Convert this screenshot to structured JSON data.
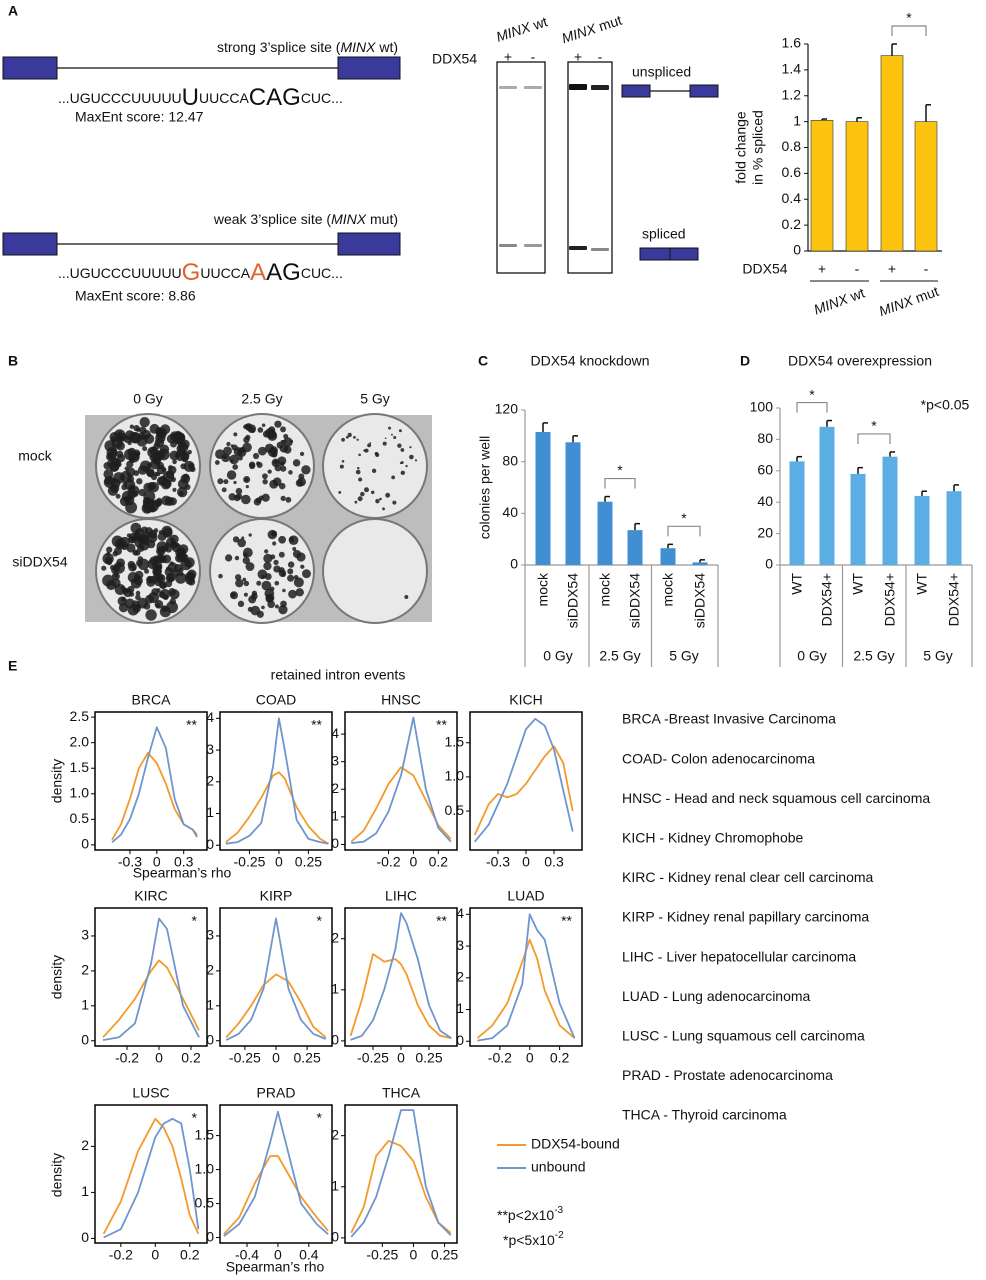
{
  "panel_labels": [
    "A",
    "B",
    "C",
    "D",
    "E"
  ],
  "panel_a": {
    "strong": {
      "title": [
        {
          "text": "strong 3’splice site ("
        },
        {
          "text": "MINX",
          "italic": true
        },
        {
          "text": " wt)"
        }
      ],
      "sequence": [
        {
          "text": "...UGUCCCUUUUU"
        },
        {
          "text": "U",
          "big": true
        },
        {
          "text": "UUCCA"
        },
        {
          "text": "CAG",
          "big": true
        },
        {
          "text": "CUC..."
        }
      ],
      "score": "MaxEnt score: 12.47"
    },
    "weak": {
      "title": [
        {
          "text": "weak 3’splice site ("
        },
        {
          "text": "MINX",
          "italic": true
        },
        {
          "text": " mut)"
        }
      ],
      "sequence": [
        {
          "text": "...UGUCCCUUUUU"
        },
        {
          "text": "G",
          "big": true,
          "color": "#e3622b"
        },
        {
          "text": "UUCCA"
        },
        {
          "text": "A",
          "big": true,
          "color": "#e3622b"
        },
        {
          "text": "AG",
          "big": true
        },
        {
          "text": "CUC..."
        }
      ],
      "score": "MaxEnt score: 8.86"
    },
    "gel": {
      "lanes": [
        [
          {
            "text": "MINX",
            "italic": true
          },
          {
            "text": " wt"
          }
        ],
        [
          {
            "text": "MINX",
            "italic": true
          },
          {
            "text": " mut"
          }
        ]
      ],
      "row_label": "DDX54",
      "signs": [
        "+",
        "-",
        "+",
        "-"
      ],
      "unspliced": "unspliced",
      "spliced": "spliced"
    }
  },
  "panel_b": {
    "columns": [
      "0 Gy",
      "2.5 Gy",
      "5 Gy"
    ],
    "rows": [
      "mock",
      "siDDX54"
    ]
  },
  "panel_e": {
    "heading": "retained intron events",
    "xlabel": "Spearman’s rho",
    "ylabel": "density",
    "legend": [
      {
        "name": "DDX54-bound",
        "color": "#f39a2b"
      },
      {
        "name": "unbound",
        "color": "#6f95cf"
      }
    ],
    "footnotes": [
      [
        {
          "text": "**p<2x10"
        },
        {
          "text": "-3",
          "sup": true
        }
      ],
      [
        {
          "text": "*p<5x10"
        },
        {
          "text": "-2",
          "sup": true
        }
      ]
    ],
    "abbreviations": [
      "BRCA -Breast Invasive Carcinoma",
      "COAD- Colon adenocarcinoma",
      "HNSC - Head and neck squamous cell carcinoma",
      "KICH - Kidney Chromophobe",
      "KIRC - Kidney renal clear cell carcinoma",
      "KIRP - Kidney renal papillary carcinoma",
      "LIHC - Liver hepatocellular carcinoma",
      "LUAD - Lung adenocarcinoma",
      "LUSC - Lung squamous cell carcinoma",
      "PRAD - Prostate adenocarcinoma",
      "THCA - Thyroid carcinoma"
    ]
  },
  "chart_data": [
    {
      "type": "bar",
      "ylabel": [
        "fold change",
        "in % spliced"
      ],
      "row_label": "DDX54",
      "categories": [
        "+",
        "-",
        "+",
        "-"
      ],
      "values": [
        1.01,
        1.0,
        1.51,
        1.0
      ],
      "errors": [
        0.01,
        0.03,
        0.09,
        0.13
      ],
      "groups": [
        [
          {
            "text": "MINX",
            "italic": true
          },
          {
            "text": " wt"
          }
        ],
        [
          {
            "text": "MINX",
            "italic": true
          },
          {
            "text": " mut"
          }
        ]
      ],
      "color": "#fcc30f",
      "ylim": [
        0,
        1.6
      ],
      "yticks": [
        0,
        0.2,
        0.4,
        0.6,
        0.8,
        1,
        1.2,
        1.4,
        1.6
      ],
      "brackets": [
        {
          "between": [
            2,
            3
          ],
          "label": "*"
        }
      ]
    },
    {
      "type": "bar",
      "title": "DDX54 knockdown",
      "ylabel": "colonies per well",
      "categories": [
        "mock",
        "siDDX54",
        "mock",
        "siDDX54",
        "mock",
        "siDDX54"
      ],
      "values": [
        103,
        95,
        49,
        27,
        13,
        2
      ],
      "errors": [
        7,
        5,
        4,
        5,
        3,
        2
      ],
      "groups": [
        "0 Gy",
        "2.5 Gy",
        "5 Gy"
      ],
      "color": "#3f8fd2",
      "ylim": [
        0,
        120
      ],
      "yticks": [
        0,
        40,
        80,
        120
      ],
      "brackets": [
        {
          "between": [
            2,
            3
          ],
          "label": "*"
        },
        {
          "between": [
            4,
            5
          ],
          "label": "*"
        }
      ]
    },
    {
      "type": "bar",
      "title": "DDX54 overexpression",
      "annotation": "*p<0.05",
      "categories": [
        "WT",
        "DDX54+",
        "WT",
        "DDX54+",
        "WT",
        "DDX54+"
      ],
      "values": [
        66,
        88,
        58,
        69,
        44,
        47
      ],
      "errors": [
        3,
        4,
        4,
        3,
        3,
        4
      ],
      "groups": [
        "0 Gy",
        "2.5 Gy",
        "5 Gy"
      ],
      "color": "#5aaee3",
      "ylim": [
        0,
        100
      ],
      "yticks": [
        0,
        20,
        40,
        60,
        80,
        100
      ],
      "brackets": [
        {
          "between": [
            0,
            1
          ],
          "label": "*"
        },
        {
          "between": [
            2,
            3
          ],
          "label": "*"
        }
      ]
    },
    {
      "type": "line",
      "title": "BRCA",
      "significance": "**",
      "x": [
        -0.5,
        -0.4,
        -0.3,
        -0.2,
        -0.1,
        0,
        0.1,
        0.2,
        0.3,
        0.4,
        0.45
      ],
      "series": [
        {
          "values": [
            0.1,
            0.4,
            0.9,
            1.5,
            1.8,
            1.6,
            1.2,
            0.7,
            0.4,
            0.3,
            0.2
          ]
        },
        {
          "values": [
            0.05,
            0.2,
            0.5,
            1.0,
            1.7,
            2.3,
            1.9,
            0.9,
            0.4,
            0.3,
            0.15
          ]
        }
      ],
      "xlim": [
        -0.69,
        0.56
      ],
      "xticks": [
        -0.3,
        0,
        0.3
      ],
      "ylim": [
        -0.1,
        2.6
      ],
      "yticks": [
        0,
        0.5,
        {
          "value": 1,
          "label": "1.0"
        },
        1.5,
        {
          "value": 2,
          "label": "2.0"
        },
        2.5
      ]
    },
    {
      "type": "line",
      "title": "COAD",
      "significance": "**",
      "x": [
        -0.45,
        -0.35,
        -0.25,
        -0.15,
        -0.05,
        0,
        0.05,
        0.15,
        0.25,
        0.35,
        0.42
      ],
      "series": [
        {
          "values": [
            0.1,
            0.4,
            0.9,
            1.5,
            2.2,
            2.3,
            2.1,
            1.2,
            0.6,
            0.2,
            0.05
          ]
        },
        {
          "values": [
            0.05,
            0.1,
            0.3,
            0.7,
            2.5,
            4.0,
            3.0,
            0.8,
            0.2,
            0.1,
            0.05
          ]
        }
      ],
      "xlim": [
        -0.5,
        0.45
      ],
      "xticks": [
        -0.25,
        0,
        0.25
      ],
      "ylim": [
        -0.15,
        4.2
      ],
      "yticks": [
        0,
        1,
        2,
        3,
        4
      ]
    },
    {
      "type": "line",
      "title": "HNSC",
      "significance": "**",
      "x": [
        -0.5,
        -0.4,
        -0.3,
        -0.2,
        -0.1,
        0,
        0.1,
        0.2,
        0.3
      ],
      "series": [
        {
          "values": [
            0.1,
            0.5,
            1.3,
            2.2,
            2.8,
            2.5,
            1.6,
            0.7,
            0.2
          ]
        },
        {
          "values": [
            0.05,
            0.1,
            0.4,
            1.2,
            2.5,
            4.6,
            2.0,
            0.6,
            0.1
          ]
        }
      ],
      "xlim": [
        -0.55,
        0.35
      ],
      "xticks": [
        -0.2,
        0,
        0.2
      ],
      "ylim": [
        -0.2,
        4.8
      ],
      "yticks": [
        0,
        1,
        2,
        3,
        4
      ]
    },
    {
      "type": "line",
      "title": "KICH",
      "x": [
        -0.55,
        -0.4,
        -0.3,
        -0.2,
        -0.1,
        0,
        0.1,
        0.2,
        0.3,
        0.4,
        0.5
      ],
      "series": [
        {
          "values": [
            0.15,
            0.6,
            0.75,
            0.7,
            0.75,
            0.9,
            1.1,
            1.3,
            1.45,
            1.2,
            0.5
          ]
        },
        {
          "values": [
            0.05,
            0.3,
            0.6,
            0.9,
            1.3,
            1.7,
            1.85,
            1.75,
            1.4,
            0.8,
            0.2
          ]
        }
      ],
      "xlim": [
        -0.6,
        0.6
      ],
      "xticks": [
        -0.3,
        0,
        0.3
      ],
      "ylim": [
        -0.07,
        1.95
      ],
      "yticks": [
        0.5,
        {
          "value": 1,
          "label": "1.0"
        },
        1.5
      ]
    },
    {
      "type": "line",
      "title": "KIRC",
      "significance": "*",
      "x": [
        -0.35,
        -0.25,
        -0.15,
        -0.05,
        0,
        0.05,
        0.15,
        0.25
      ],
      "series": [
        {
          "values": [
            0.1,
            0.6,
            1.2,
            2.0,
            2.3,
            2.1,
            1.2,
            0.3
          ]
        },
        {
          "values": [
            0.02,
            0.1,
            0.5,
            2.2,
            3.5,
            3.2,
            1.0,
            0.1
          ]
        }
      ],
      "xlim": [
        -0.4,
        0.3
      ],
      "xticks": [
        -0.2,
        0,
        0.2
      ],
      "ylim": [
        -0.15,
        3.8
      ],
      "yticks": [
        0,
        1,
        2,
        3
      ]
    },
    {
      "type": "line",
      "title": "KIRP",
      "significance": "*",
      "x": [
        -0.4,
        -0.3,
        -0.2,
        -0.1,
        0,
        0.1,
        0.2,
        0.3,
        0.4
      ],
      "series": [
        {
          "values": [
            0.1,
            0.5,
            1.0,
            1.6,
            1.9,
            1.7,
            1.1,
            0.4,
            0.1
          ]
        },
        {
          "values": [
            0.02,
            0.2,
            0.6,
            1.5,
            3.5,
            1.5,
            0.6,
            0.2,
            0.05
          ]
        }
      ],
      "xlim": [
        -0.45,
        0.45
      ],
      "xticks": [
        -0.25,
        0,
        0.25
      ],
      "ylim": [
        -0.15,
        3.8
      ],
      "yticks": [
        0,
        1,
        2,
        3
      ]
    },
    {
      "type": "line",
      "title": "LIHC",
      "significance": "**",
      "x": [
        -0.45,
        -0.35,
        -0.25,
        -0.15,
        -0.05,
        0,
        0.05,
        0.15,
        0.25,
        0.35,
        0.45
      ],
      "series": [
        {
          "values": [
            0.1,
            0.8,
            1.7,
            1.55,
            1.6,
            1.5,
            1.3,
            0.7,
            0.3,
            0.1,
            0.05
          ]
        },
        {
          "values": [
            0.02,
            0.1,
            0.4,
            1.0,
            1.8,
            2.5,
            2.3,
            1.6,
            0.7,
            0.2,
            0.05
          ]
        }
      ],
      "xlim": [
        -0.5,
        0.5
      ],
      "xticks": [
        -0.25,
        0,
        0.25
      ],
      "ylim": [
        -0.1,
        2.6
      ],
      "yticks": [
        0,
        1,
        2
      ]
    },
    {
      "type": "line",
      "title": "LUAD",
      "significance": "**",
      "x": [
        -0.35,
        -0.25,
        -0.15,
        -0.05,
        0,
        0.05,
        0.1,
        0.2,
        0.3
      ],
      "series": [
        {
          "values": [
            0.1,
            0.5,
            1.2,
            2.5,
            3.2,
            2.6,
            1.6,
            0.5,
            0.1
          ]
        },
        {
          "values": [
            0.02,
            0.1,
            0.5,
            1.8,
            4.0,
            3.5,
            3.2,
            1.2,
            0.1
          ]
        }
      ],
      "xlim": [
        -0.4,
        0.35
      ],
      "xticks": [
        -0.2,
        0,
        0.2
      ],
      "ylim": [
        -0.15,
        4.2
      ],
      "yticks": [
        0,
        1,
        2,
        3,
        4
      ]
    },
    {
      "type": "line",
      "title": "LUSC",
      "significance": "*",
      "x": [
        -0.3,
        -0.2,
        -0.1,
        0,
        0.05,
        0.1,
        0.15,
        0.2,
        0.25
      ],
      "series": [
        {
          "values": [
            0.1,
            0.8,
            1.9,
            2.6,
            2.4,
            2.0,
            1.3,
            0.5,
            0.1
          ]
        },
        {
          "values": [
            0.02,
            0.2,
            1.0,
            2.2,
            2.5,
            2.6,
            2.5,
            1.5,
            0.2
          ]
        }
      ],
      "xlim": [
        -0.35,
        0.3
      ],
      "xticks": [
        -0.2,
        0,
        0.2
      ],
      "ylim": [
        -0.1,
        2.9
      ],
      "yticks": [
        0,
        1,
        2
      ]
    },
    {
      "type": "line",
      "title": "PRAD",
      "significance": "*",
      "x": [
        -0.7,
        -0.5,
        -0.3,
        -0.1,
        0,
        0.1,
        0.3,
        0.5,
        0.65
      ],
      "series": [
        {
          "values": [
            0.05,
            0.3,
            0.8,
            1.2,
            1.2,
            1.0,
            0.6,
            0.3,
            0.1
          ]
        },
        {
          "values": [
            0.02,
            0.2,
            0.6,
            1.4,
            1.85,
            1.4,
            0.5,
            0.2,
            0.05
          ]
        }
      ],
      "xlim": [
        -0.75,
        0.7
      ],
      "xticks": [
        -0.4,
        0,
        0.4
      ],
      "ylim": [
        -0.08,
        1.95
      ],
      "yticks": [
        0,
        0.5,
        {
          "value": 1,
          "label": "1.0"
        },
        1.5
      ]
    },
    {
      "type": "line",
      "title": "THCA",
      "x": [
        -0.5,
        -0.4,
        -0.3,
        -0.2,
        -0.1,
        0,
        0.1,
        0.2,
        0.3
      ],
      "series": [
        {
          "values": [
            0.1,
            0.6,
            1.6,
            1.9,
            1.8,
            1.5,
            0.8,
            0.3,
            0.1
          ]
        },
        {
          "values": [
            0.02,
            0.3,
            0.8,
            1.6,
            2.5,
            2.5,
            1.0,
            0.3,
            0.05
          ]
        }
      ],
      "xlim": [
        -0.55,
        0.35
      ],
      "xticks": [
        -0.25,
        0,
        0.25
      ],
      "ylim": [
        -0.1,
        2.6
      ],
      "yticks": [
        0,
        1,
        2
      ]
    }
  ]
}
